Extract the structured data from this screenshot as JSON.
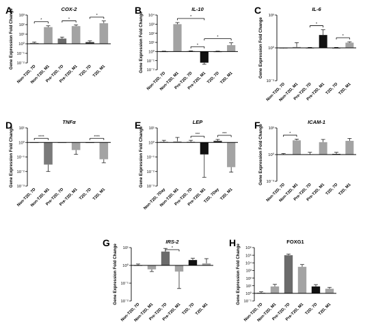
{
  "figure": {
    "shared_ylabel": "Gene Expression Fold Change"
  },
  "chart_data": [
    {
      "panel": "A",
      "type": "bar",
      "title": "COX-2",
      "title_italic": true,
      "yscale": "log",
      "ylim": [
        0.01,
        1000
      ],
      "yticks": [
        "10⁻²",
        "10⁻¹",
        "10⁰",
        "10¹",
        "10²",
        "10³"
      ],
      "ytick_exp": [
        -2,
        -1,
        0,
        1,
        2,
        3
      ],
      "categories": [
        "Non-T2D, 7D",
        "Non-T2D, M1",
        "Pre-T2D, 7D",
        "Pre-T2D, M1",
        "T2D, 7D",
        "T2D, M1"
      ],
      "values": [
        1.2,
        55,
        3.5,
        70,
        1.5,
        140
      ],
      "error_upper": [
        1.5,
        75,
        5,
        95,
        2,
        240
      ],
      "error_lower": null,
      "colors": [
        "#7a7a7a",
        "#a3a3a3",
        "#6b6b6b",
        "#a3a3a3",
        "#3a3a3a",
        "#a3a3a3"
      ],
      "significance": [
        {
          "from": 0,
          "to": 1,
          "label": "*"
        },
        {
          "from": 2,
          "to": 3,
          "label": "*"
        },
        {
          "from": 4,
          "to": 5,
          "label": "*"
        }
      ]
    },
    {
      "panel": "B",
      "type": "bar",
      "title": "IL-10",
      "title_italic": true,
      "yscale": "log",
      "ylim": [
        0.01,
        10000
      ],
      "yticks": [
        "10⁻²",
        "10⁻¹",
        "10⁰",
        "10¹",
        "10²",
        "10³",
        "10⁴"
      ],
      "ytick_exp": [
        -2,
        -1,
        0,
        1,
        2,
        3,
        4
      ],
      "categories": [
        "Non-T2D, 7D",
        "Non-T2D, M1",
        "Pre-T2D, 7D",
        "Pre-T2D, M1",
        "T2D, 7D",
        "T2D, M1"
      ],
      "values": [
        1,
        1000,
        1.1,
        0.06,
        1,
        5
      ],
      "error_upper": [
        1.1,
        1500,
        1.2,
        null,
        1.1,
        9
      ],
      "error_lower": [
        null,
        null,
        null,
        0.04,
        null,
        null
      ],
      "colors": [
        "#7a7a7a",
        "#a3a3a3",
        "#6b6b6b",
        "#111111",
        "#3a3a3a",
        "#a3a3a3"
      ],
      "significance": [
        {
          "from": 1,
          "to": 3,
          "label": "*"
        },
        {
          "from": 2,
          "to": 3,
          "label": "*"
        },
        {
          "from": 3,
          "to": 5,
          "label": "*"
        }
      ]
    },
    {
      "panel": "C",
      "type": "bar",
      "title": "IL-6",
      "title_italic": true,
      "yscale": "log",
      "ylim": [
        0.001,
        1000
      ],
      "yticks": [
        "10⁻³",
        "10⁰",
        "10³"
      ],
      "ytick_exp": [
        -3,
        0,
        3
      ],
      "categories": [
        "Non-T2D, 7D",
        "Non-T2D, M1",
        "Pre-T2D, 7D",
        "Pre-T2D, M1",
        "T2D, 7D",
        "T2D, M1"
      ],
      "values": [
        0.9,
        1.2,
        1,
        15,
        1,
        3
      ],
      "error_upper": [
        1,
        3,
        1.1,
        45,
        1.1,
        3.6
      ],
      "error_lower": null,
      "colors": [
        "#7a7a7a",
        "#a3a3a3",
        "#6b6b6b",
        "#111111",
        "#3a3a3a",
        "#a3a3a3"
      ],
      "significance": [
        {
          "from": 2,
          "to": 3,
          "label": "*"
        },
        {
          "from": 4,
          "to": 5,
          "label": "*"
        }
      ]
    },
    {
      "panel": "D",
      "type": "bar",
      "title": "TNFα",
      "title_italic": true,
      "yscale": "log",
      "ylim": [
        0.001,
        10
      ],
      "yticks": [
        "10⁻³",
        "10⁻²",
        "10⁻¹",
        "10⁰",
        "10¹"
      ],
      "ytick_exp": [
        -3,
        -2,
        -1,
        0,
        1
      ],
      "categories": [
        "Non-T2D, 7D",
        "Non-T2D, M1",
        "Pre-T2D, 7D",
        "Pre-T2D, M1",
        "T2D, 7D",
        "T2D, M1"
      ],
      "values": [
        1,
        0.03,
        1,
        0.3,
        1,
        0.07
      ],
      "error_upper": null,
      "error_lower": [
        null,
        0.01,
        null,
        0.15,
        null,
        0.04
      ],
      "colors": [
        "#7a7a7a",
        "#7a7a7a",
        "#6b6b6b",
        "#a3a3a3",
        "#3a3a3a",
        "#a3a3a3"
      ],
      "significance": [
        {
          "from": 0,
          "to": 1,
          "label": "****"
        },
        {
          "from": 4,
          "to": 5,
          "label": "****"
        }
      ]
    },
    {
      "panel": "E",
      "type": "bar",
      "title": "LEP",
      "title_italic": true,
      "yscale": "log",
      "ylim": [
        0.001,
        10
      ],
      "yticks": [
        "10⁻³",
        "10⁻²",
        "10⁻¹",
        "10⁰",
        "10¹"
      ],
      "ytick_exp": [
        -3,
        -2,
        -1,
        0,
        1
      ],
      "categories": [
        "Non-T2D, 7Day",
        "Non-T2D, M1",
        "Pre-T2D, 7D",
        "Pre-T2D, M1",
        "T2D, 7Day",
        "T2D, M1"
      ],
      "values": [
        1.1,
        1.2,
        1.1,
        0.15,
        1.3,
        0.02
      ],
      "error_upper": [
        1.4,
        2.2,
        1.4,
        null,
        1.6,
        null
      ],
      "error_lower": [
        null,
        null,
        null,
        0.004,
        null,
        0.009
      ],
      "colors": [
        "#7a7a7a",
        "#a3a3a3",
        "#6b6b6b",
        "#111111",
        "#3a3a3a",
        "#a3a3a3"
      ],
      "significance": [
        {
          "from": 2,
          "to": 3,
          "label": "***"
        },
        {
          "from": 4,
          "to": 5,
          "label": "***"
        }
      ]
    },
    {
      "panel": "F",
      "type": "bar",
      "title": "ICAM-1",
      "title_italic": true,
      "yscale": "log",
      "ylim": [
        0.001,
        1000
      ],
      "yticks": [
        "10⁻³",
        "10⁰",
        "10³"
      ],
      "ytick_exp": [
        -3,
        0,
        3
      ],
      "categories": [
        "Non-T2D, 7D",
        "Non-T2D, M1",
        "Pre-T2D, 7D",
        "Pre-T2D, M1",
        "T2D, 7D",
        "T2D, M1"
      ],
      "values": [
        1.1,
        40,
        1.1,
        25,
        1.2,
        35
      ],
      "error_upper": [
        1.3,
        55,
        1.8,
        50,
        1.8,
        65
      ],
      "error_lower": null,
      "colors": [
        "#7a7a7a",
        "#a3a3a3",
        "#6b6b6b",
        "#a3a3a3",
        "#3a3a3a",
        "#a3a3a3"
      ],
      "significance": [
        {
          "from": 0,
          "to": 1,
          "label": "*"
        }
      ]
    },
    {
      "panel": "G",
      "type": "bar",
      "title": "IRS-2",
      "title_italic": true,
      "yscale": "log",
      "ylim": [
        0.01,
        10
      ],
      "yticks": [
        "10⁻²",
        "10⁻¹",
        "10⁰",
        "10¹"
      ],
      "ytick_exp": [
        -2,
        -1,
        0,
        1
      ],
      "categories": [
        "Non-T2D, 7D",
        "Non-T2D, M1",
        "Pre-T2D, 7D",
        "Pre-T2D, M1",
        "T2D, 7D",
        "T2D, M1"
      ],
      "values": [
        1,
        0.6,
        6,
        0.45,
        2,
        1.3
      ],
      "error_upper": [
        1.2,
        null,
        9,
        null,
        2.5,
        2.4
      ],
      "error_lower": [
        null,
        0.45,
        null,
        0.05,
        null,
        null
      ],
      "colors": [
        "#7a7a7a",
        "#a3a3a3",
        "#6b6b6b",
        "#a3a3a3",
        "#111111",
        "#a3a3a3"
      ],
      "significance": [
        {
          "from": 2,
          "to": 3,
          "label": "*"
        }
      ]
    },
    {
      "panel": "H",
      "type": "bar",
      "title": "FOXG1",
      "title_italic": false,
      "yscale": "log",
      "ylim": [
        0.1,
        1000000
      ],
      "yticks": [
        "10⁻¹",
        "10⁰",
        "10¹",
        "10²",
        "10³",
        "10⁴",
        "10⁵",
        "10⁶"
      ],
      "ytick_exp": [
        -1,
        0,
        1,
        2,
        3,
        4,
        5,
        6
      ],
      "categories": [
        "Non-T2D, 7D",
        "Non-T2D, M1",
        "Pre-T2D, 7D",
        "Pre-T2D, M1",
        "T2D, 7D",
        "T2D, M1"
      ],
      "values": [
        1.2,
        8,
        100000,
        3000,
        8,
        4
      ],
      "error_upper": [
        1.6,
        15,
        140000,
        6000,
        14,
        6
      ],
      "error_lower": null,
      "colors": [
        "#7a7a7a",
        "#a3a3a3",
        "#6b6b6b",
        "#a3a3a3",
        "#111111",
        "#a3a3a3"
      ],
      "significance": []
    }
  ]
}
